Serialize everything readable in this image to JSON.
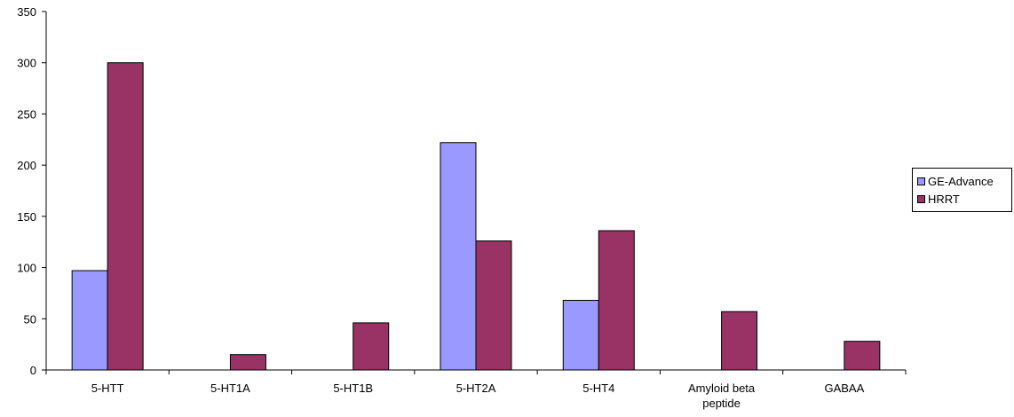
{
  "chart_data": {
    "type": "bar",
    "title": "",
    "xlabel": "",
    "ylabel": "",
    "categories": [
      "5-HTT",
      "5-HT1A",
      "5-HT1B",
      "5-HT2A",
      "5-HT4",
      "Amyloid beta peptide",
      "GABAA"
    ],
    "category_lines": [
      [
        "5-HTT"
      ],
      [
        "5-HT1A"
      ],
      [
        "5-HT1B"
      ],
      [
        "5-HT2A"
      ],
      [
        "5-HT4"
      ],
      [
        "Amyloid beta",
        "peptide"
      ],
      [
        "GABAA"
      ]
    ],
    "series": [
      {
        "name": "GE-Advance",
        "color": "#9999ff",
        "values": [
          97,
          null,
          null,
          222,
          68,
          null,
          null
        ]
      },
      {
        "name": "HRRT",
        "color": "#993366",
        "values": [
          300,
          15,
          46,
          126,
          136,
          57,
          28
        ]
      }
    ],
    "ylim": [
      0,
      350
    ],
    "yticks": [
      0,
      50,
      100,
      150,
      200,
      250,
      300,
      350
    ],
    "grid": false,
    "legend_position": "right"
  }
}
